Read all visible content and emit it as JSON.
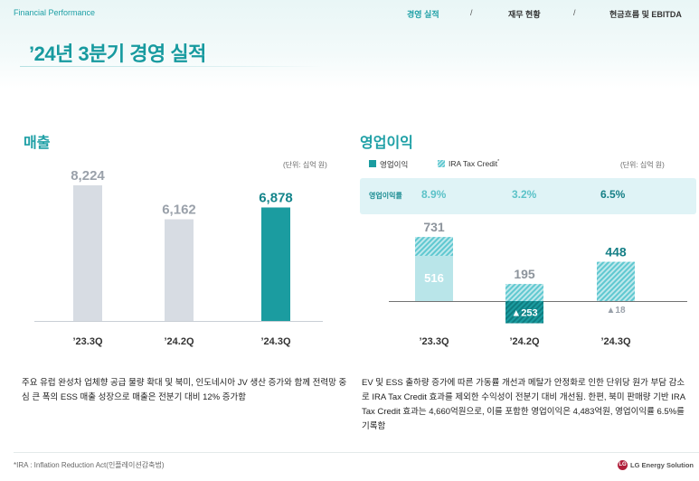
{
  "header": {
    "brand": "Financial Performance",
    "nav": [
      {
        "label": "경영 실적",
        "active": true
      },
      {
        "label": "재무 현황",
        "active": false
      },
      {
        "label": "현금흐름 및 EBITDA",
        "active": false
      }
    ],
    "separator": "/",
    "title": "’24년 3분기 경영 실적"
  },
  "revenue": {
    "title": "매출",
    "unit": "(단위: 십억 원)",
    "description": "주요 유럽 완성차 업체향 공급 물량 확대 및 북미, 인도네시아 JV 생산 증가와 함께 전력망 중심 큰 폭의 ESS 매출 성장으로 매출은 전분기 대비 12% 증가함"
  },
  "op_profit": {
    "title": "영업이익",
    "unit": "(단위: 십억 원)",
    "legend": [
      {
        "label": "영업이익",
        "sup": ""
      },
      {
        "label": "IRA Tax Credit",
        "sup": "*"
      }
    ],
    "margin_label": "영업이익률",
    "margins": [
      "8.9%",
      "3.2%",
      "6.5%"
    ],
    "description": "EV 및 ESS 출하량 증가에 따른 가동률 개선과 메탈가 안정화로 인한 단위당 원가 부담 감소로 IRA Tax Credit 효과를 제외한 수익성이 전분기 대비 개선됨. 한편, 북미 판매량 기반 IRA Tax Credit 효과는 4,660억원으로, 이를 포함한 영업이익은 4,483억원, 영업이익률 6.5%를 기록함"
  },
  "chart_data": [
    {
      "type": "bar",
      "name": "revenue",
      "categories": [
        "’23.3Q",
        "’24.2Q",
        "’24.3Q"
      ],
      "values": [
        8224,
        6162,
        6878
      ],
      "labels": [
        "8,224",
        "6,162",
        "6,878"
      ],
      "highlight_index": 2,
      "colors": {
        "default": "#d7dce3",
        "highlight": "#1b9ca0",
        "highlight_label": "#14858b",
        "label": "#9aa1aa"
      }
    },
    {
      "type": "bar",
      "name": "operating_profit",
      "categories": [
        "’23.3Q",
        "’24.2Q",
        "’24.3Q"
      ],
      "total": [
        731,
        195,
        448
      ],
      "total_labels": [
        "731",
        "195",
        "448"
      ],
      "ira_tax_credit": [
        215,
        448,
        466
      ],
      "op_ex_ira": [
        516,
        -253,
        -18
      ],
      "op_ex_ira_labels": [
        "516",
        "▲253",
        "▲18"
      ],
      "colors": {
        "solid": "#1b9ca0",
        "hatch_dark": "#5fc8d0",
        "hatch_light": "#bfe8ec",
        "pale": "#b9e5e9"
      }
    }
  ],
  "footnote": "*IRA : Inflation Reduction Act(인플레이션감축법)",
  "logo": {
    "mark": "LG",
    "text": "LG Energy Solution"
  }
}
